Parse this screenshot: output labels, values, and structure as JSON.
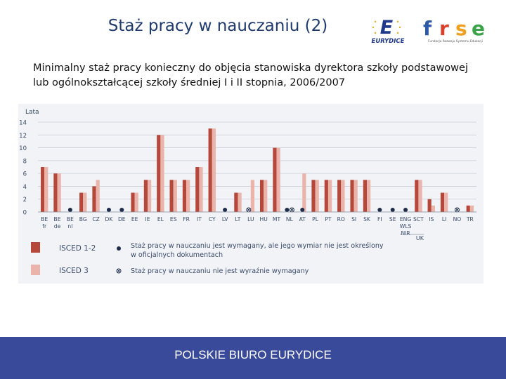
{
  "header": {
    "title": "Staż pracy w nauczaniu (2)",
    "subtitle": "Minimalny staż pracy konieczny do objęcia stanowiska dyrektora szkoły podstawowej lub ogólnokształcącej szkoły średniej I i II stopnia, 2006/2007"
  },
  "logos": {
    "eurydice": {
      "letter": "E",
      "text": "EURYDICE"
    },
    "frse": {
      "letters": [
        "f",
        "r",
        "s",
        "e"
      ],
      "tagline": "Fundacja Rozwoju Systemu Edukacji"
    }
  },
  "footer": {
    "text": "POLSKIE BIURO EURYDICE"
  },
  "colors": {
    "isced12": "#b5483a",
    "isced3": "#eab4ab",
    "background": "#f1f3f6",
    "footer": "#3a4a9a",
    "title": "#1f3a6e"
  },
  "chart_data": {
    "type": "bar",
    "ylabel": "Lata",
    "ylim": [
      0,
      14
    ],
    "yticks": [
      0,
      2,
      4,
      6,
      8,
      10,
      12,
      14
    ],
    "grid": true,
    "categories": [
      {
        "label": [
          "BE",
          "fr"
        ],
        "isced12": 7,
        "isced3": 7
      },
      {
        "label": [
          "BE",
          "de"
        ],
        "isced12": 6,
        "isced3": 6
      },
      {
        "label": [
          "BE",
          "nl"
        ],
        "isced12": null,
        "isced3": null,
        "marker": "dot"
      },
      {
        "label": [
          "BG"
        ],
        "isced12": 3,
        "isced3": 3
      },
      {
        "label": [
          "CZ"
        ],
        "isced12": 4,
        "isced3": 5
      },
      {
        "label": [
          "DK"
        ],
        "isced12": null,
        "isced3": null,
        "marker": "dot"
      },
      {
        "label": [
          "DE"
        ],
        "isced12": null,
        "isced3": null,
        "marker": "dot"
      },
      {
        "label": [
          "EE"
        ],
        "isced12": 3,
        "isced3": 3
      },
      {
        "label": [
          "IE"
        ],
        "isced12": 5,
        "isced3": 5
      },
      {
        "label": [
          "EL"
        ],
        "isced12": 12,
        "isced3": 12
      },
      {
        "label": [
          "ES"
        ],
        "isced12": 5,
        "isced3": 5
      },
      {
        "label": [
          "FR"
        ],
        "isced12": 5,
        "isced3": 5
      },
      {
        "label": [
          "IT"
        ],
        "isced12": 7,
        "isced3": 7
      },
      {
        "label": [
          "CY"
        ],
        "isced12": 13,
        "isced3": 13
      },
      {
        "label": [
          "LV"
        ],
        "isced12": null,
        "isced3": null,
        "marker": "dot"
      },
      {
        "label": [
          "LT"
        ],
        "isced12": 3,
        "isced3": 3
      },
      {
        "label": [
          "LU"
        ],
        "isced12": null,
        "isced3": 5,
        "marker": "not-required"
      },
      {
        "label": [
          "HU"
        ],
        "isced12": 5,
        "isced3": 5
      },
      {
        "label": [
          "MT"
        ],
        "isced12": 10,
        "isced3": 10
      },
      {
        "label": [
          "NL"
        ],
        "isced12": null,
        "isced3": null,
        "marker": "dot-and-not-required"
      },
      {
        "label": [
          "AT"
        ],
        "isced12": null,
        "isced3": 6,
        "marker": "dot"
      },
      {
        "label": [
          "PL"
        ],
        "isced12": 5,
        "isced3": 5
      },
      {
        "label": [
          "PT"
        ],
        "isced12": 5,
        "isced3": 5
      },
      {
        "label": [
          "RO"
        ],
        "isced12": 5,
        "isced3": 5
      },
      {
        "label": [
          "SI"
        ],
        "isced12": 5,
        "isced3": 5
      },
      {
        "label": [
          "SK"
        ],
        "isced12": 5,
        "isced3": 5
      },
      {
        "label": [
          "FI"
        ],
        "isced12": null,
        "isced3": null,
        "marker": "dot"
      },
      {
        "label": [
          "SE"
        ],
        "isced12": null,
        "isced3": null,
        "marker": "dot"
      },
      {
        "label": [
          "ENG",
          "WLS",
          "NIR"
        ],
        "isced12": null,
        "isced3": null,
        "marker": "dot"
      },
      {
        "label": [
          "SCT"
        ],
        "isced12": 5,
        "isced3": 5
      },
      {
        "label": [
          "IS"
        ],
        "isced12": 2,
        "isced3": 1
      },
      {
        "label": [
          "LI"
        ],
        "isced12": 3,
        "isced3": 3
      },
      {
        "label": [
          "NO"
        ],
        "isced12": null,
        "isced3": null,
        "marker": "not-required"
      },
      {
        "label": [
          "TR"
        ],
        "isced12": 1,
        "isced3": 1
      }
    ],
    "group_labels": [
      {
        "label": "UK",
        "from": "ENG",
        "to": "SCT"
      }
    ],
    "legend": {
      "placement": "bottom",
      "items": [
        {
          "key": "isced12",
          "label": "ISCED 1-2"
        },
        {
          "key": "isced3",
          "label": "ISCED 3"
        },
        {
          "key": "dot",
          "label": "Staż pracy w nauczaniu jest wymagany, ale jego wymiar nie jest określony w oficjalnych dokumentach"
        },
        {
          "key": "not-required",
          "label": "Staż pracy w nauczaniu nie jest wyraźnie wymagany"
        }
      ]
    }
  }
}
